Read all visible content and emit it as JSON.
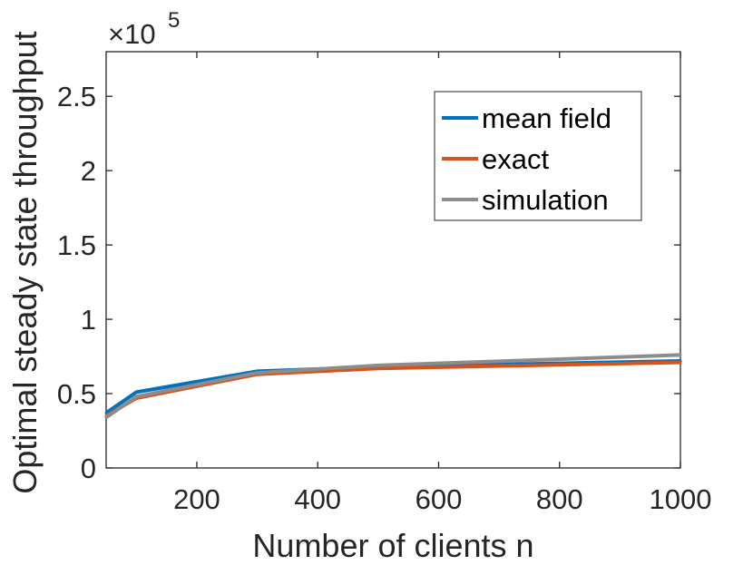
{
  "chart_data": {
    "type": "line",
    "title": "",
    "xlabel": "Number of clients n",
    "ylabel": "Optimal steady state throughput",
    "xlim": [
      50,
      1000
    ],
    "ylim": [
      0,
      2.8
    ],
    "xticks": [
      200,
      400,
      600,
      800,
      1000
    ],
    "yticks": [
      0,
      0.5,
      1,
      1.5,
      2,
      2.5
    ],
    "xtick_labels": [
      "200",
      "400",
      "600",
      "800",
      "1000"
    ],
    "ytick_labels": [
      "0",
      "0.5",
      "1",
      "1.5",
      "2",
      "2.5"
    ],
    "y_multiplier": {
      "base": "×10",
      "exponent": "5"
    },
    "legend_position": "top-right",
    "grid": false,
    "x": [
      50,
      100,
      300,
      500,
      1000
    ],
    "series": [
      {
        "name": "mean field",
        "color": "#0072BD",
        "values": [
          0.37,
          0.51,
          0.65,
          0.68,
          0.72
        ]
      },
      {
        "name": "exact",
        "color": "#D95319",
        "values": [
          0.35,
          0.47,
          0.63,
          0.67,
          0.71
        ]
      },
      {
        "name": "simulation",
        "color": "#8C8C8C",
        "values": [
          0.34,
          0.48,
          0.64,
          0.69,
          0.76
        ]
      }
    ]
  }
}
